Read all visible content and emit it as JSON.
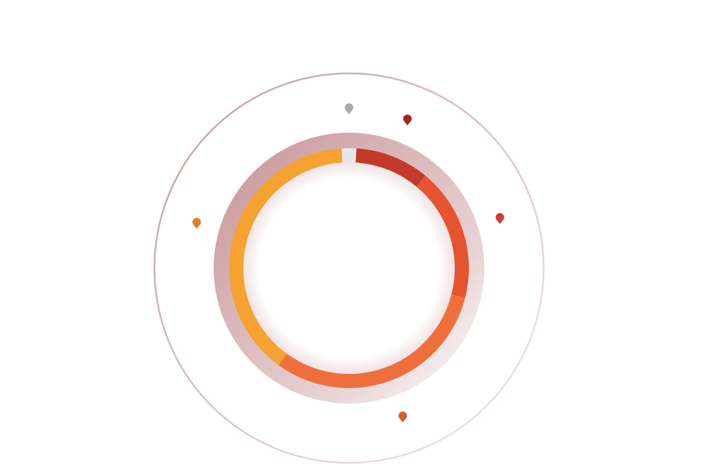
{
  "chart_data": {
    "type": "donut",
    "values": [
      2,
      10,
      18,
      31,
      39
    ],
    "colors": [
      "#e6e6e6",
      "#c43a28",
      "#e3542f",
      "#ef6f3c",
      "#f5a230"
    ],
    "marker_colors": [
      "#a9a9a9",
      "#a8221f",
      "#d23b30",
      "#d9601f",
      "#e07e25"
    ]
  }
}
